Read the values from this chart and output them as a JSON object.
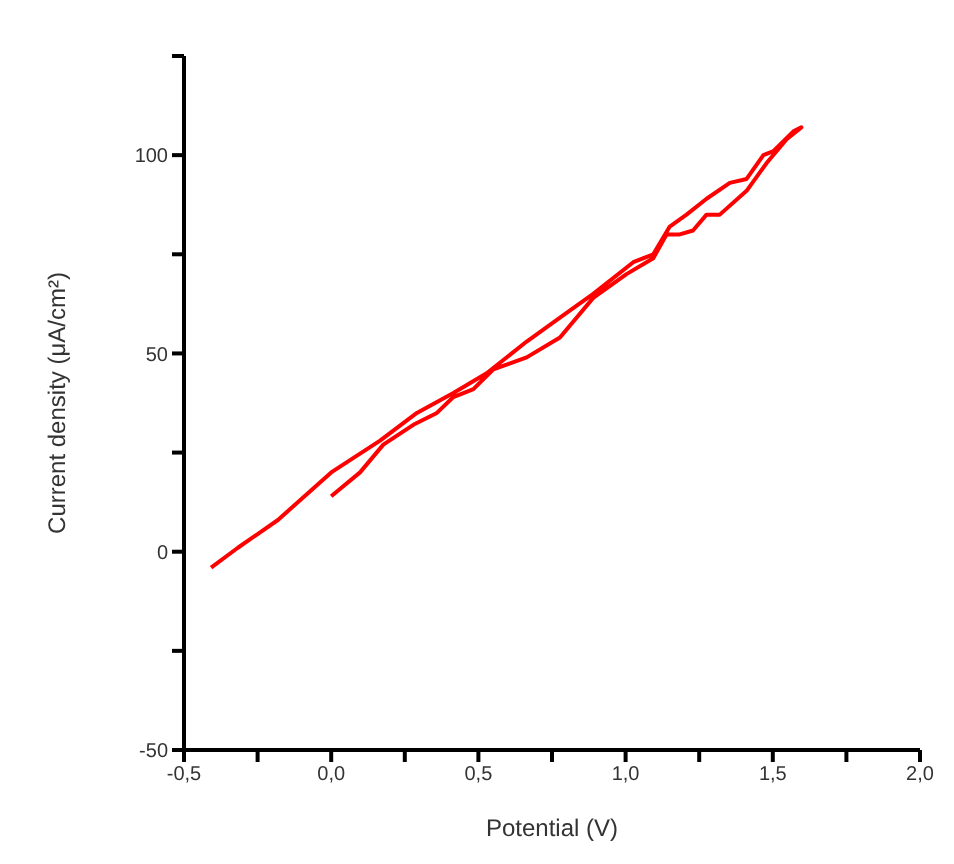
{
  "chart_data": {
    "type": "line",
    "xlabel": "Potential (V)",
    "ylabel": "Current density (μA/cm²)",
    "series": [
      {
        "color": "#ff0000",
        "x": [
          0.0,
          0.098,
          0.177,
          0.279,
          0.359,
          0.415,
          0.483,
          0.551,
          0.664,
          0.777,
          0.89,
          1.003,
          1.094,
          1.139,
          1.184,
          1.229,
          1.275,
          1.32,
          1.411,
          1.479,
          1.547,
          1.597,
          1.57,
          1.502,
          1.468,
          1.411,
          1.354,
          1.275,
          1.207,
          1.15,
          1.094,
          1.026,
          0.89,
          0.777,
          0.664,
          0.528,
          0.415,
          0.291,
          0.166,
          0.0,
          -0.181,
          -0.317,
          -0.408
        ],
        "values": [
          14,
          20,
          27,
          32,
          35,
          39,
          41,
          46,
          49,
          54,
          64,
          70,
          74,
          80,
          80,
          81,
          85,
          85,
          91,
          98,
          104,
          107,
          106,
          101,
          100,
          94,
          93,
          89,
          85,
          82,
          75,
          73,
          65,
          59,
          53,
          45,
          40,
          35,
          28,
          20,
          8,
          1,
          -4
        ]
      }
    ],
    "xlim": [
      -0.5,
      2.0
    ],
    "xticks": [
      {
        "value": -0.5,
        "label": "-0,5"
      },
      {
        "value": -0.25,
        "label": null
      },
      {
        "value": 0,
        "label": "0,0"
      },
      {
        "value": 0.25,
        "label": null
      },
      {
        "value": 0.5,
        "label": "0,5"
      },
      {
        "value": 0.75,
        "label": null
      },
      {
        "value": 1.0,
        "label": "1,0"
      },
      {
        "value": 1.25,
        "label": null
      },
      {
        "value": 1.5,
        "label": "1,5"
      },
      {
        "value": 1.75,
        "label": null
      },
      {
        "value": 2.0,
        "label": "2,0"
      }
    ],
    "ylim": [
      -50,
      125
    ],
    "yticks": [
      -50,
      {
        "value": -25,
        "label": null
      },
      0,
      {
        "value": 25,
        "label": null
      },
      50,
      {
        "value": 75,
        "label": null
      },
      100,
      {
        "value": 125,
        "label": null
      }
    ],
    "grid": false,
    "legend": false,
    "marker": "none",
    "line_style": "solid"
  }
}
